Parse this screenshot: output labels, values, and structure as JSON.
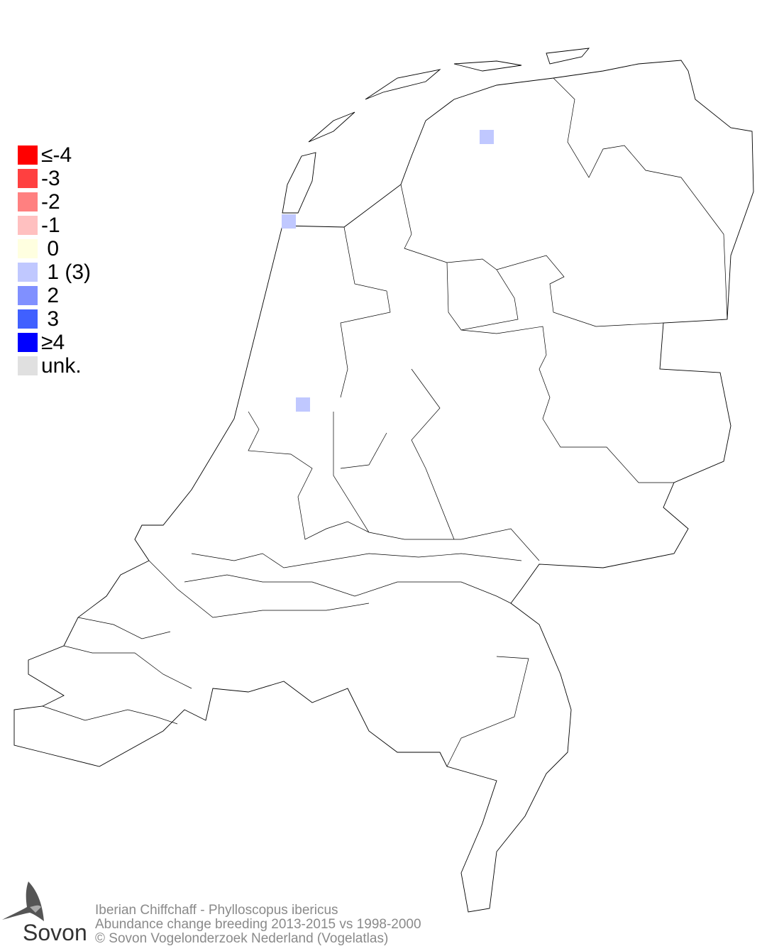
{
  "legend": {
    "items": [
      {
        "label": "≤-4",
        "color": "#ff0000"
      },
      {
        "label": "-3",
        "color": "#ff4040"
      },
      {
        "label": "-2",
        "color": "#ff8080"
      },
      {
        "label": "-1",
        "color": "#ffc0c0"
      },
      {
        "label": " 0",
        "color": "#ffffe0"
      },
      {
        "label": " 1 (3)",
        "color": "#c0c8ff"
      },
      {
        "label": " 2",
        "color": "#8090ff"
      },
      {
        "label": " 3",
        "color": "#4060ff"
      },
      {
        "label": "≥4",
        "color": "#0000ff"
      },
      {
        "label": "unk.",
        "color": "#e0e0e0"
      }
    ]
  },
  "map": {
    "cells": [
      {
        "class": "1",
        "color": "#c0c8ff"
      },
      {
        "class": "1",
        "color": "#c0c8ff"
      },
      {
        "class": "1",
        "color": "#c0c8ff"
      }
    ]
  },
  "footer": {
    "species": "Iberian Chiffchaff - Phylloscopus ibericus",
    "subtitle": "Abundance change breeding  2013-2015 vs 1998-2000",
    "copyright": "© Sovon Vogelonderzoek Nederland (Vogelatlas)"
  },
  "logo": {
    "text": "Sovon"
  }
}
